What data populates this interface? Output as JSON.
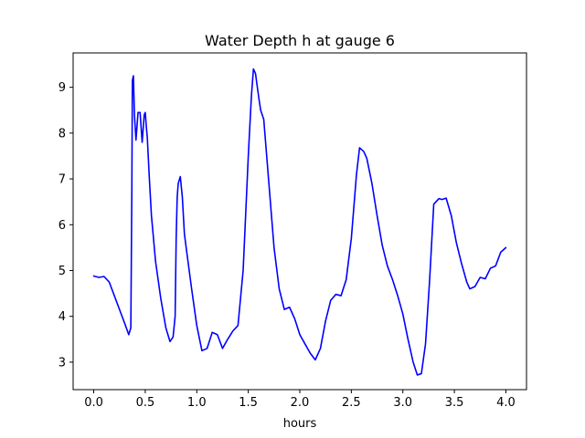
{
  "chart_data": {
    "type": "line",
    "title": "Water Depth h at gauge 6",
    "xlabel": "hours",
    "ylabel": "",
    "xlim": [
      -0.2,
      4.2
    ],
    "ylim": [
      2.4,
      9.75
    ],
    "xticks": [
      0.0,
      0.5,
      1.0,
      1.5,
      2.0,
      2.5,
      3.0,
      3.5,
      4.0
    ],
    "xtick_labels": [
      "0.0",
      "0.5",
      "1.0",
      "1.5",
      "2.0",
      "2.5",
      "3.0",
      "3.5",
      "4.0"
    ],
    "yticks": [
      3,
      4,
      5,
      6,
      7,
      8,
      9
    ],
    "ytick_labels": [
      "3",
      "4",
      "5",
      "6",
      "7",
      "8",
      "9"
    ],
    "grid": false,
    "series": [
      {
        "color": "#0000ff",
        "x": [
          0.0,
          0.05,
          0.1,
          0.15,
          0.2,
          0.25,
          0.3,
          0.34,
          0.36,
          0.37,
          0.375,
          0.385,
          0.395,
          0.41,
          0.43,
          0.45,
          0.47,
          0.49,
          0.5,
          0.51,
          0.52,
          0.54,
          0.56,
          0.6,
          0.65,
          0.7,
          0.74,
          0.77,
          0.79,
          0.8,
          0.81,
          0.82,
          0.84,
          0.86,
          0.88,
          0.9,
          0.95,
          1.0,
          1.05,
          1.1,
          1.15,
          1.2,
          1.25,
          1.3,
          1.35,
          1.4,
          1.45,
          1.5,
          1.53,
          1.55,
          1.57,
          1.6,
          1.62,
          1.65,
          1.7,
          1.75,
          1.8,
          1.85,
          1.9,
          1.95,
          2.0,
          2.05,
          2.1,
          2.15,
          2.2,
          2.25,
          2.3,
          2.35,
          2.4,
          2.45,
          2.5,
          2.55,
          2.58,
          2.62,
          2.65,
          2.7,
          2.75,
          2.8,
          2.85,
          2.9,
          2.95,
          3.0,
          3.05,
          3.1,
          3.14,
          3.18,
          3.22,
          3.26,
          3.3,
          3.35,
          3.38,
          3.42,
          3.47,
          3.52,
          3.57,
          3.62,
          3.65,
          3.7,
          3.75,
          3.8,
          3.85,
          3.9,
          3.95,
          4.0
        ],
        "y": [
          4.88,
          4.85,
          4.87,
          4.75,
          4.45,
          4.15,
          3.85,
          3.6,
          3.75,
          6.8,
          9.15,
          9.25,
          8.4,
          7.85,
          8.45,
          8.45,
          7.8,
          8.4,
          8.45,
          8.15,
          7.9,
          7.0,
          6.2,
          5.2,
          4.4,
          3.75,
          3.45,
          3.55,
          4.0,
          5.7,
          6.6,
          6.9,
          7.05,
          6.6,
          5.8,
          5.45,
          4.6,
          3.8,
          3.25,
          3.3,
          3.65,
          3.6,
          3.3,
          3.5,
          3.68,
          3.8,
          5.0,
          7.5,
          8.8,
          9.4,
          9.3,
          8.8,
          8.5,
          8.3,
          6.9,
          5.5,
          4.6,
          4.15,
          4.2,
          3.95,
          3.6,
          3.4,
          3.2,
          3.05,
          3.3,
          3.9,
          4.35,
          4.48,
          4.45,
          4.8,
          5.7,
          7.1,
          7.68,
          7.6,
          7.45,
          6.9,
          6.2,
          5.55,
          5.1,
          4.8,
          4.45,
          4.05,
          3.5,
          3.0,
          2.72,
          2.75,
          3.4,
          4.8,
          6.45,
          6.57,
          6.55,
          6.58,
          6.2,
          5.6,
          5.15,
          4.75,
          4.6,
          4.65,
          4.85,
          4.82,
          5.05,
          5.1,
          5.4,
          5.5
        ]
      }
    ]
  }
}
